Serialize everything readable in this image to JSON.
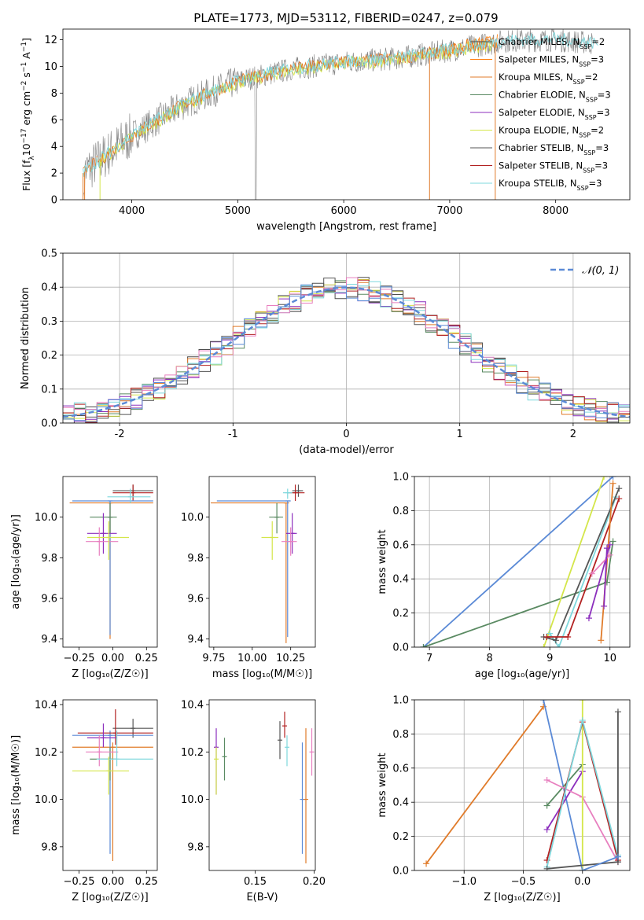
{
  "figure_title": "PLATE=1773, MJD=53112, FIBERID=0247, z=0.079",
  "colors": {
    "Chabrier MILES": "#4d4d4d",
    "Salpeter MILES": "#ff7f0e",
    "Kroupa MILES": "#e07b2a",
    "Chabrier ELODIE": "#5a8a62",
    "Salpeter ELODIE": "#8c2fbd",
    "Kroupa ELODIE": "#d4e64a",
    "Chabrier STELIB": "#555555",
    "Salpeter STELIB": "#b22222",
    "Kroupa STELIB": "#7fd8dd",
    "blue": "#5b8ad6",
    "pink": "#e87fbf",
    "orange": "#e07b2a",
    "gaussian": "#5b8ad6"
  },
  "chart_data": [
    {
      "id": "spectrum",
      "type": "line",
      "xlabel": "wavelength [Angstrom, rest frame]",
      "ylabel": "Flux [f$_\\lambda$10$^{-17}$ erg cm$^{-2}$ s$^{-1}$ A$^{-1}$]",
      "ylabel_parts": [
        "Flux [f",
        "λ",
        "10",
        "−17",
        " erg cm",
        "−2",
        " s",
        "−1",
        " A",
        "−1",
        "]"
      ],
      "xlim": [
        3350,
        8700
      ],
      "ylim": [
        0,
        12.8
      ],
      "xticks": [
        4000,
        5000,
        6000,
        7000,
        8000
      ],
      "yticks": [
        0,
        2,
        4,
        6,
        8,
        10,
        12
      ],
      "legend_loc": "upper right",
      "data_anchor_wavelengths": [
        3540,
        3700,
        4000,
        4500,
        5000,
        5500,
        6000,
        6500,
        7000,
        7500,
        8000,
        8400
      ],
      "data_anchor_flux": [
        2.0,
        3.0,
        4.8,
        7.2,
        8.9,
        9.8,
        10.3,
        10.6,
        11.2,
        11.9,
        12.0,
        11.7
      ],
      "legend": [
        {
          "label": "Chabrier MILES, N",
          "sub": "SSP",
          "tail": "=2",
          "color": "#4d4d4d"
        },
        {
          "label": "Salpeter MILES, N",
          "sub": "SSP",
          "tail": "=3",
          "color": "#ff7f0e"
        },
        {
          "label": "Kroupa MILES, N",
          "sub": "SSP",
          "tail": "=2",
          "color": "#e07b2a"
        },
        {
          "label": "Chabrier ELODIE, N",
          "sub": "SSP",
          "tail": "=3",
          "color": "#5a8a62"
        },
        {
          "label": "Salpeter ELODIE, N",
          "sub": "SSP",
          "tail": "=3",
          "color": "#8c2fbd"
        },
        {
          "label": "Kroupa ELODIE, N",
          "sub": "SSP",
          "tail": "=2",
          "color": "#d4e64a"
        },
        {
          "label": "Chabrier STELIB, N",
          "sub": "SSP",
          "tail": "=3",
          "color": "#555555"
        },
        {
          "label": "Salpeter STELIB, N",
          "sub": "SSP",
          "tail": "=3",
          "color": "#b22222"
        },
        {
          "label": "Kroupa STELIB, N",
          "sub": "SSP",
          "tail": "=3",
          "color": "#7fd8dd"
        }
      ]
    },
    {
      "id": "residuals",
      "type": "histogram",
      "xlabel": "(data-model)/error",
      "ylabel": "Normed distribution",
      "xlim": [
        -2.5,
        2.5
      ],
      "ylim": [
        0,
        0.5
      ],
      "xticks": [
        -2,
        -1,
        0,
        1,
        2
      ],
      "yticks": [
        0.0,
        0.1,
        0.2,
        0.3,
        0.4,
        0.5
      ],
      "grid": true,
      "legend": [
        {
          "label": "𝒩(0, 1)",
          "color": "#5b8ad6",
          "style": "dashed"
        }
      ],
      "legend_loc": "upper right",
      "bin_width": 0.1
    },
    {
      "id": "age_vs_Z",
      "type": "errorbar",
      "xlabel": "Z [log₁₀(Z/Z☉)]",
      "ylabel": "age  [log₁₀(age/yr)]",
      "xlim": [
        -0.37,
        0.33
      ],
      "ylim": [
        9.36,
        10.2
      ],
      "xticks": [
        -0.25,
        0.0,
        0.25
      ],
      "xticklabels": [
        "−0.25",
        "0.00",
        "0.25"
      ],
      "yticks": [
        9.4,
        9.6,
        9.8,
        10.0
      ],
      "points": [
        {
          "x": 0.15,
          "xerr": [
            0.15,
            0.15
          ],
          "y": 10.13,
          "yerr": [
            0.03,
            0.03
          ],
          "color": "#555555"
        },
        {
          "x": 0.15,
          "xerr": [
            0.15,
            0.15
          ],
          "y": 10.12,
          "yerr": [
            0.04,
            0.04
          ],
          "color": "#b22222"
        },
        {
          "x": -0.02,
          "xerr": [
            0.3,
            0.32
          ],
          "y": 10.07,
          "yerr": [
            0.67,
            0.0
          ],
          "color": "#e07b2a"
        },
        {
          "x": -0.02,
          "xerr": [
            0.28,
            0.32
          ],
          "y": 10.08,
          "yerr": [
            0.66,
            0.0
          ],
          "color": "#5b8ad6"
        },
        {
          "x": 0.13,
          "xerr": [
            0.17,
            0.15
          ],
          "y": 10.1,
          "yerr": [
            0.03,
            0.04
          ],
          "color": "#7fd8dd"
        },
        {
          "x": -0.02,
          "xerr": [
            0.15,
            0.05
          ],
          "y": 10.0,
          "yerr": [
            0.08,
            0.07
          ],
          "color": "#5a8a62"
        },
        {
          "x": -0.07,
          "xerr": [
            0.12,
            0.1
          ],
          "y": 9.92,
          "yerr": [
            0.1,
            0.1
          ],
          "color": "#8c2fbd"
        },
        {
          "x": -0.1,
          "xerr": [
            0.1,
            0.14
          ],
          "y": 9.88,
          "yerr": [
            0.07,
            0.07
          ],
          "color": "#e87fbf"
        },
        {
          "x": -0.03,
          "xerr": [
            0.16,
            0.15
          ],
          "y": 9.9,
          "yerr": [
            0.11,
            0.08
          ],
          "color": "#d4e64a"
        }
      ]
    },
    {
      "id": "age_vs_mass",
      "type": "errorbar",
      "xlabel": "mass [log₁₀(M/M☉)]",
      "ylabel": "",
      "xlim": [
        9.72,
        10.41
      ],
      "ylim": [
        9.36,
        10.2
      ],
      "xticks": [
        9.75,
        10.0,
        10.25
      ],
      "xticklabels": [
        "9.75",
        "10.00",
        "10.25"
      ],
      "yticks": [
        9.4,
        9.6,
        9.8,
        10.0
      ],
      "points": [
        {
          "x": 10.3,
          "xerr": [
            0.04,
            0.03
          ],
          "y": 10.13,
          "yerr": [
            0.03,
            0.03
          ],
          "color": "#555555"
        },
        {
          "x": 10.28,
          "xerr": [
            0.05,
            0.06
          ],
          "y": 10.12,
          "yerr": [
            0.04,
            0.04
          ],
          "color": "#b22222"
        },
        {
          "x": 10.22,
          "xerr": [
            0.49,
            0.02
          ],
          "y": 10.07,
          "yerr": [
            0.69,
            0.0
          ],
          "color": "#e07b2a"
        },
        {
          "x": 10.23,
          "xerr": [
            0.46,
            0.02
          ],
          "y": 10.08,
          "yerr": [
            0.67,
            0.0
          ],
          "color": "#5b8ad6"
        },
        {
          "x": 10.23,
          "xerr": [
            0.03,
            0.03
          ],
          "y": 10.12,
          "yerr": [
            0.03,
            0.02
          ],
          "color": "#7fd8dd"
        },
        {
          "x": 10.16,
          "xerr": [
            0.05,
            0.04
          ],
          "y": 10.0,
          "yerr": [
            0.08,
            0.07
          ],
          "color": "#5a8a62"
        },
        {
          "x": 10.26,
          "xerr": [
            0.04,
            0.03
          ],
          "y": 9.92,
          "yerr": [
            0.1,
            0.1
          ],
          "color": "#8c2fbd"
        },
        {
          "x": 10.25,
          "xerr": [
            0.06,
            0.04
          ],
          "y": 9.88,
          "yerr": [
            0.07,
            0.07
          ],
          "color": "#e87fbf"
        },
        {
          "x": 10.13,
          "xerr": [
            0.07,
            0.04
          ],
          "y": 9.9,
          "yerr": [
            0.11,
            0.08
          ],
          "color": "#d4e64a"
        }
      ]
    },
    {
      "id": "weight_vs_age",
      "type": "line",
      "xlabel": "age  [log₁₀(age/yr)]",
      "ylabel": "mass weight",
      "xlim": [
        6.75,
        10.33
      ],
      "ylim": [
        0,
        1.0
      ],
      "xticks": [
        7,
        8,
        9,
        10
      ],
      "yticks": [
        0.0,
        0.2,
        0.4,
        0.6,
        0.8,
        1.0
      ],
      "grid": true,
      "series": [
        {
          "color": "#5b8ad6",
          "x": [
            6.9,
            10.05
          ],
          "y": [
            0.0,
            1.0
          ]
        },
        {
          "color": "#5a8a62",
          "x": [
            6.9,
            9.95,
            10.05
          ],
          "y": [
            0.0,
            0.38,
            0.62
          ]
        },
        {
          "color": "#d4e64a",
          "x": [
            8.9,
            9.9
          ],
          "y": [
            0.0,
            1.0
          ]
        },
        {
          "color": "#7fd8dd",
          "x": [
            9.0,
            9.15,
            10.1
          ],
          "y": [
            0.08,
            0.0,
            0.88
          ]
        },
        {
          "color": "#555555",
          "x": [
            8.9,
            9.1,
            10.15
          ],
          "y": [
            0.06,
            0.04,
            0.93
          ]
        },
        {
          "color": "#b22222",
          "x": [
            8.95,
            9.3,
            10.15
          ],
          "y": [
            0.06,
            0.06,
            0.87
          ]
        },
        {
          "color": "#e07b2a",
          "x": [
            9.85,
            10.05
          ],
          "y": [
            0.04,
            0.96
          ]
        },
        {
          "color": "#8c2fbd",
          "x": [
            9.65,
            10.0
          ],
          "y": [
            0.17,
            0.6
          ]
        },
        {
          "color": "#e87fbf",
          "x": [
            9.7,
            10.0
          ],
          "y": [
            0.43,
            0.54
          ]
        },
        {
          "color": "#8c2fbd",
          "x": [
            9.9,
            9.95
          ],
          "y": [
            0.24,
            0.58
          ]
        }
      ]
    },
    {
      "id": "mass_vs_Z",
      "type": "errorbar",
      "xlabel": "Z [log₁₀(Z/Z☉)]",
      "ylabel": "mass [log₁₀(M/M☉)]",
      "xlim": [
        -0.37,
        0.33
      ],
      "ylim": [
        9.7,
        10.42
      ],
      "xticks": [
        -0.25,
        0.0,
        0.25
      ],
      "xticklabels": [
        "−0.25",
        "0.00",
        "0.25"
      ],
      "yticks": [
        9.8,
        10.0,
        10.2,
        10.4
      ],
      "points": [
        {
          "x": 0.15,
          "xerr": [
            0.15,
            0.15
          ],
          "y": 10.3,
          "yerr": [
            0.04,
            0.04
          ],
          "color": "#555555"
        },
        {
          "x": 0.0,
          "xerr": [
            0.3,
            0.3
          ],
          "y": 10.22,
          "yerr": [
            0.48,
            0.02
          ],
          "color": "#e07b2a"
        },
        {
          "x": -0.02,
          "xerr": [
            0.28,
            0.32
          ],
          "y": 10.27,
          "yerr": [
            0.5,
            0.02
          ],
          "color": "#5b8ad6"
        },
        {
          "x": 0.02,
          "xerr": [
            0.28,
            0.28
          ],
          "y": 10.28,
          "yerr": [
            0.05,
            0.1
          ],
          "color": "#b22222"
        },
        {
          "x": -0.02,
          "xerr": [
            0.15,
            0.05
          ],
          "y": 10.17,
          "yerr": [
            0.09,
            0.05
          ],
          "color": "#5a8a62"
        },
        {
          "x": -0.07,
          "xerr": [
            0.12,
            0.1
          ],
          "y": 10.26,
          "yerr": [
            0.04,
            0.06
          ],
          "color": "#8c2fbd"
        },
        {
          "x": -0.1,
          "xerr": [
            0.1,
            0.14
          ],
          "y": 10.2,
          "yerr": [
            0.06,
            0.07
          ],
          "color": "#e87fbf"
        },
        {
          "x": 0.03,
          "xerr": [
            0.15,
            0.27
          ],
          "y": 10.17,
          "yerr": [
            0.03,
            0.12
          ],
          "color": "#7fd8dd"
        },
        {
          "x": -0.03,
          "xerr": [
            0.27,
            0.15
          ],
          "y": 10.12,
          "yerr": [
            0.1,
            0.06
          ],
          "color": "#d4e64a"
        }
      ]
    },
    {
      "id": "mass_vs_EBV",
      "type": "errorbar",
      "xlabel": "E(B-V)",
      "ylabel": "",
      "xlim": [
        0.111,
        0.201
      ],
      "ylim": [
        9.7,
        10.42
      ],
      "xticks": [
        0.15,
        0.2
      ],
      "xticklabels": [
        "0.15",
        "0.20"
      ],
      "yticks": [
        9.8,
        10.0,
        10.2,
        10.4
      ],
      "points": [
        {
          "x": 0.117,
          "y": 10.22,
          "yerr": [
            0.2,
            0.08
          ],
          "color": "#8c2fbd"
        },
        {
          "x": 0.117,
          "y": 10.17,
          "yerr": [
            0.15,
            0.05
          ],
          "color": "#d4e64a"
        },
        {
          "x": 0.124,
          "y": 10.18,
          "yerr": [
            0.1,
            0.08
          ],
          "color": "#5a8a62"
        },
        {
          "x": 0.171,
          "y": 10.25,
          "yerr": [
            0.08,
            0.08
          ],
          "color": "#555555"
        },
        {
          "x": 0.175,
          "y": 10.31,
          "yerr": [
            0.05,
            0.06
          ],
          "color": "#b22222"
        },
        {
          "x": 0.177,
          "y": 10.22,
          "yerr": [
            0.08,
            0.05
          ],
          "color": "#7fd8dd"
        },
        {
          "x": 0.19,
          "y": 10.0,
          "yerr": [
            0.23,
            0.24
          ],
          "color": "#5b8ad6"
        },
        {
          "x": 0.193,
          "y": 10.0,
          "yerr": [
            0.27,
            0.3
          ],
          "color": "#e07b2a"
        },
        {
          "x": 0.198,
          "y": 10.2,
          "yerr": [
            0.1,
            0.1
          ],
          "color": "#e87fbf"
        }
      ]
    },
    {
      "id": "weight_vs_Z",
      "type": "line",
      "xlabel": "Z [log₁₀(Z/Z☉)]",
      "ylabel": "mass weight",
      "xlim": [
        -1.42,
        0.4
      ],
      "ylim": [
        0,
        1.0
      ],
      "xticks": [
        -1.0,
        -0.5,
        0.0
      ],
      "xticklabels": [
        "−1.0",
        "−0.5",
        "0.0"
      ],
      "yticks": [
        0.0,
        0.2,
        0.4,
        0.6,
        0.8,
        1.0
      ],
      "grid": true,
      "series": [
        {
          "color": "#e07b2a",
          "x": [
            -1.32,
            -0.33
          ],
          "y": [
            0.04,
            0.96
          ]
        },
        {
          "color": "#5b8ad6",
          "x": [
            -0.33,
            0.0
          ],
          "y": [
            1.0,
            0.0
          ]
        },
        {
          "color": "#5a8a62",
          "x": [
            -0.3,
            0.0
          ],
          "y": [
            0.38,
            0.62
          ]
        },
        {
          "color": "#8c2fbd",
          "x": [
            -0.3,
            0.0
          ],
          "y": [
            0.24,
            0.58
          ]
        },
        {
          "color": "#e87fbf",
          "x": [
            -0.3,
            0.0,
            0.3
          ],
          "y": [
            0.53,
            0.43,
            0.05
          ]
        },
        {
          "color": "#d4e64a",
          "x": [
            0.0,
            0.0
          ],
          "y": [
            0.0,
            1.0
          ]
        },
        {
          "color": "#b22222",
          "x": [
            -0.3,
            0.0,
            0.3
          ],
          "y": [
            0.06,
            0.87,
            0.06
          ]
        },
        {
          "color": "#7fd8dd",
          "x": [
            -0.3,
            0.0,
            0.3
          ],
          "y": [
            0.02,
            0.88,
            0.09
          ]
        },
        {
          "color": "#555555",
          "x": [
            -0.3,
            0.3,
            0.3
          ],
          "y": [
            0.01,
            0.05,
            0.93
          ]
        },
        {
          "color": "#5b8ad6",
          "x": [
            0.0,
            0.3
          ],
          "y": [
            0.0,
            0.08
          ]
        }
      ]
    }
  ]
}
